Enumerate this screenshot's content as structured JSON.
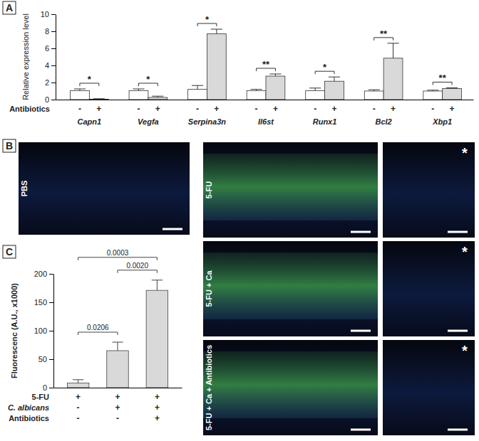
{
  "chart_data": [
    {
      "type": "bar",
      "panel": "A",
      "y_label": "Relative expression level",
      "categories": [
        "Capn1",
        "Vegfa",
        "Serpina3n",
        "Il6st",
        "Runx1",
        "Bcl2",
        "Xbp1"
      ],
      "series": [
        {
          "name": "-",
          "color": "#ffffff",
          "values": [
            1.05,
            1.05,
            1.2,
            1.05,
            1.05,
            1.0,
            1.0
          ],
          "errors": [
            0.2,
            0.2,
            0.45,
            0.15,
            0.3,
            0.15,
            0.1
          ]
        },
        {
          "name": "+",
          "color": "#d9d9d9",
          "values": [
            0.05,
            0.25,
            7.7,
            2.75,
            2.15,
            4.85,
            1.3
          ],
          "errors": [
            0.05,
            0.15,
            0.55,
            0.25,
            0.5,
            1.75,
            0.08
          ]
        }
      ],
      "row_label": "Antibiotics",
      "significance": [
        "*",
        "*",
        "*",
        "**",
        "*",
        "**",
        "**"
      ],
      "ylim": [
        0,
        10
      ],
      "yticks": [
        0,
        2,
        4,
        6,
        8,
        10
      ]
    },
    {
      "type": "bar",
      "panel": "C",
      "y_label": "Fluorescenc (A.U., x1000)",
      "categories": [
        null,
        null,
        null
      ],
      "values": [
        8,
        65,
        171
      ],
      "errors": [
        6,
        15,
        18
      ],
      "color": "#d9d9d9",
      "conditions": [
        {
          "name": "5-FU",
          "values": [
            "+",
            "+",
            "+"
          ]
        },
        {
          "name": "C. albicans",
          "values": [
            "-",
            "+",
            "+"
          ]
        },
        {
          "name": "Antibiotics",
          "values": [
            "-",
            "-",
            "+"
          ]
        }
      ],
      "comparisons": [
        {
          "from": 0,
          "to": 1,
          "label": "0.0206"
        },
        {
          "from": 1,
          "to": 2,
          "label": "0.0020"
        },
        {
          "from": 0,
          "to": 2,
          "label": "0.0003"
        }
      ],
      "ylim": [
        0,
        200
      ],
      "yticks": [
        0,
        50,
        100,
        150,
        200
      ]
    }
  ],
  "images": {
    "panel": "B",
    "labels": [
      "PBS",
      "5-FU",
      "5-FU + Ca",
      "5-FU + Ca + Antibiotics"
    ],
    "marker": "*"
  }
}
